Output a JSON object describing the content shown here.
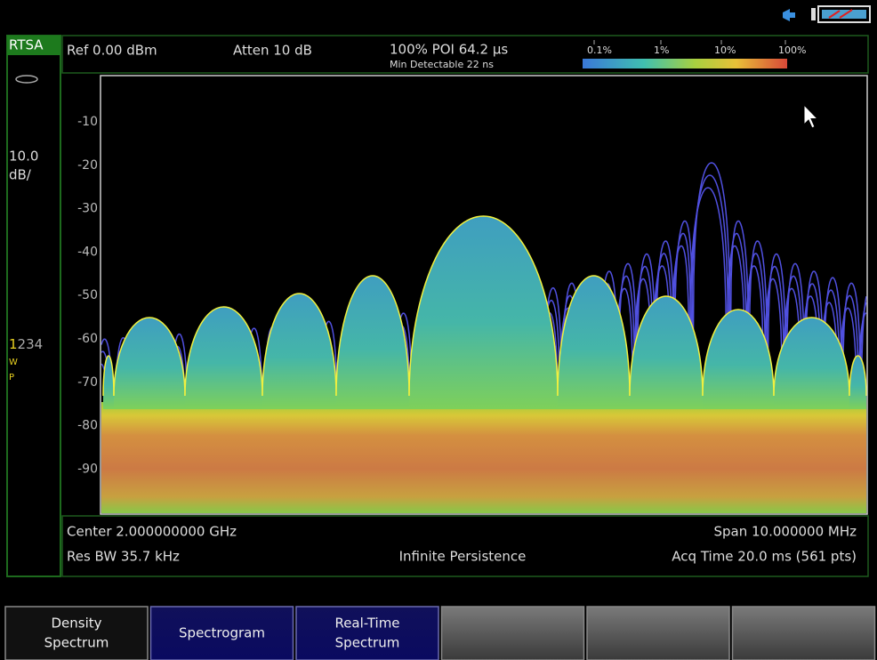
{
  "side_panel": {
    "mode": "RTSA",
    "scale_value": "10.0",
    "scale_unit": "dB/",
    "trace_first": "1",
    "trace_others": "234",
    "trace_type": "W",
    "detector": "P"
  },
  "header": {
    "ref_level": "Ref 0.00 dBm",
    "attenuation": "Atten 10 dB",
    "poi": "100% POI 64.2 µs",
    "min_detectable": "Min Detectable 22 ns",
    "density_scale": [
      "0.1%",
      "1%",
      "10%",
      "100%"
    ]
  },
  "plot": {
    "y_tick_labels": [
      "-10",
      "-20",
      "-30",
      "-40",
      "-50",
      "-60",
      "-70",
      "-80",
      "-90"
    ]
  },
  "footer": {
    "center": "Center 2.000000000 GHz",
    "span": "Span 10.000000 MHz",
    "res_bw": "Res BW 35.7 kHz",
    "persistence": "Infinite Persistence",
    "acq_time": "Acq Time 20.0 ms (561 pts)"
  },
  "softkeys": [
    [
      "Density",
      "Spectrum"
    ],
    [
      "Spectrogram"
    ],
    [
      "Real-Time",
      "Spectrum"
    ]
  ]
}
